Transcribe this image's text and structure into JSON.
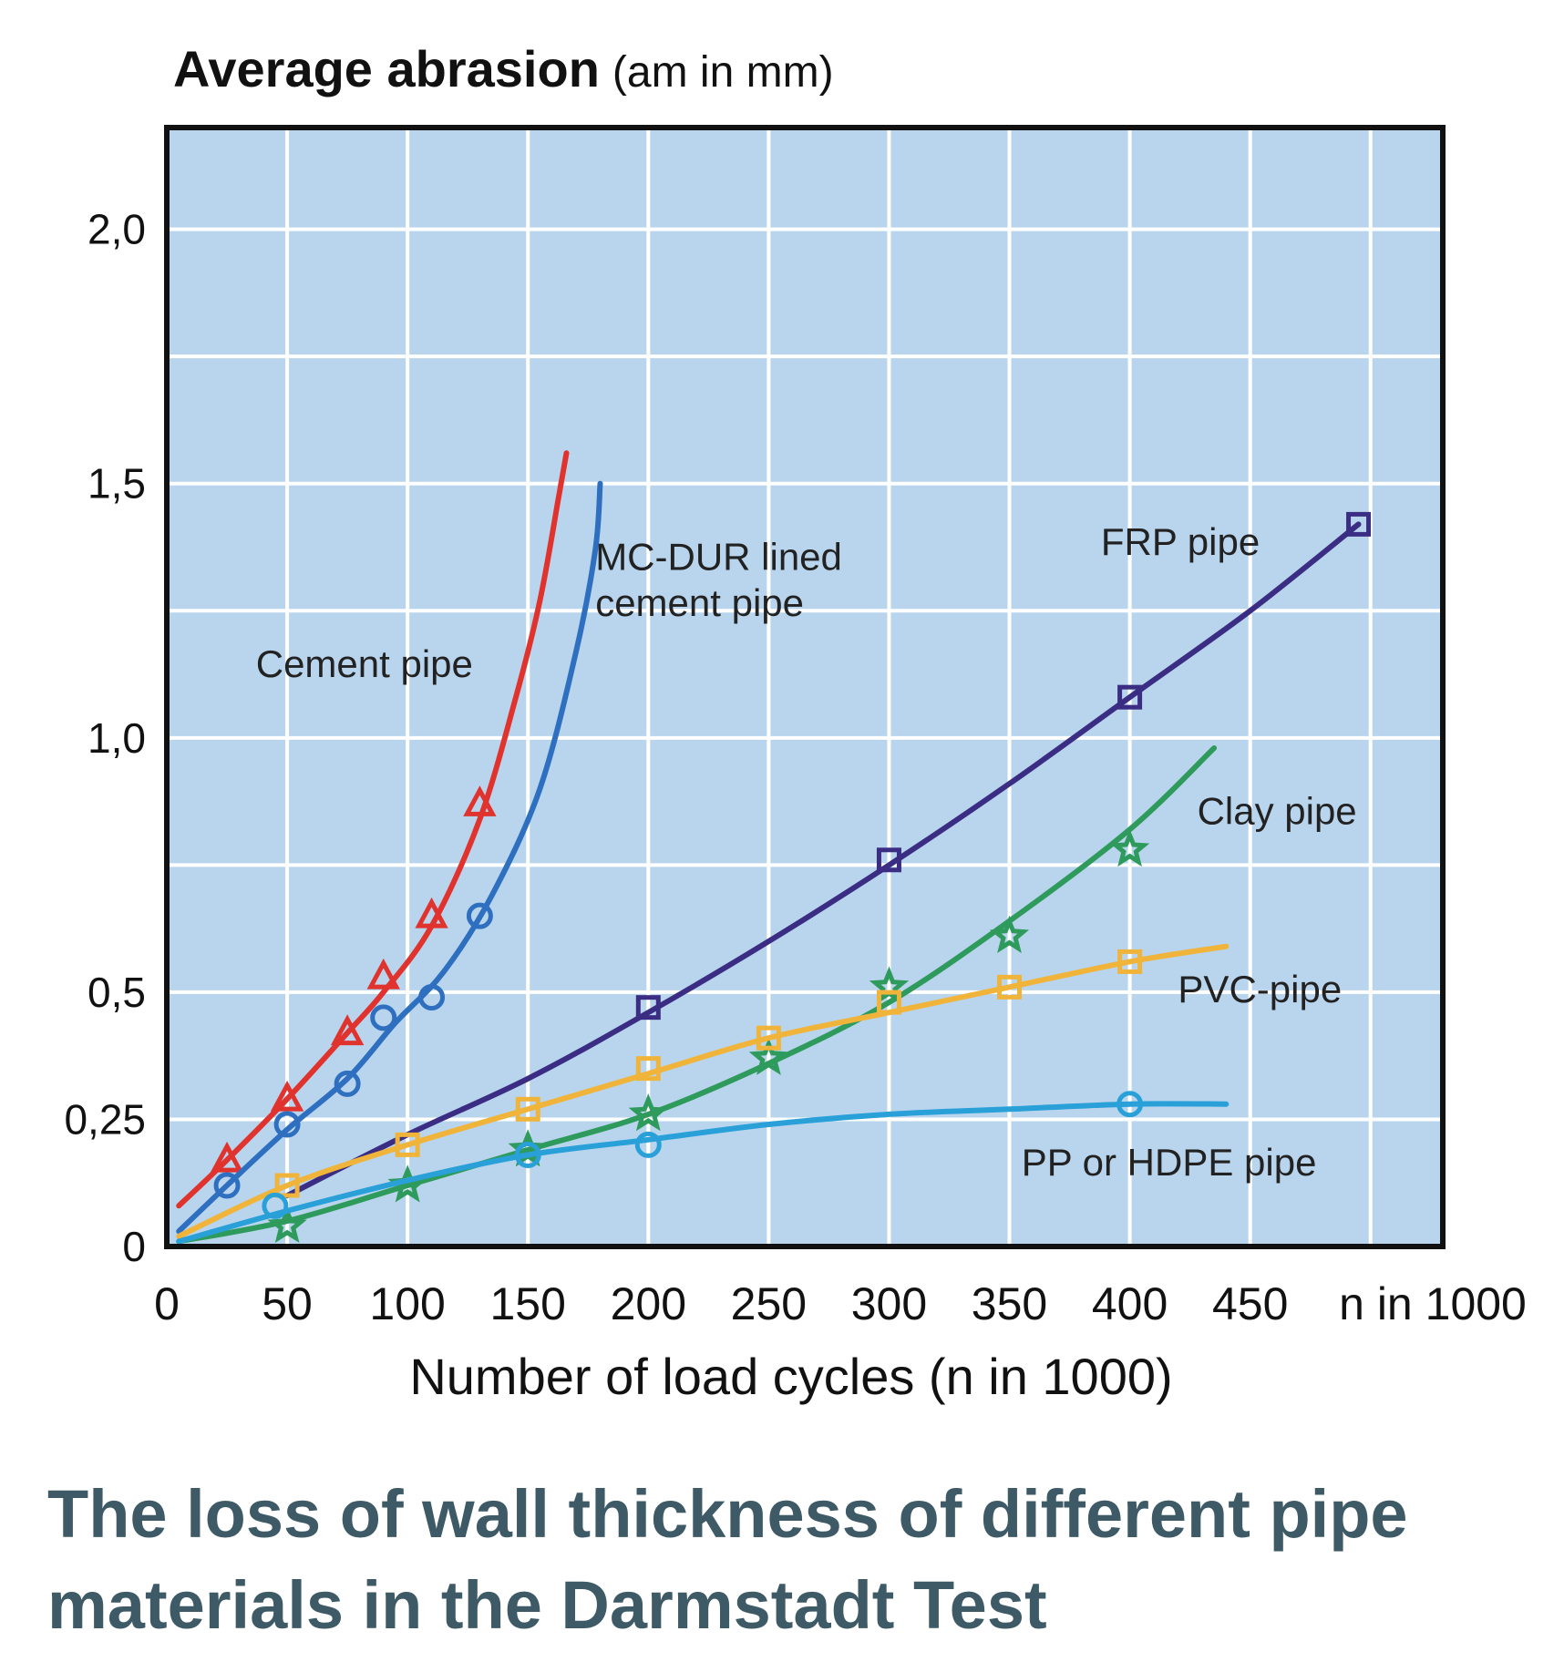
{
  "chart_data": {
    "type": "line",
    "ylabel_main": "Average abrasion",
    "ylabel_unit": "(am in mm)",
    "xlabel": "Number of load cycles (n in 1000)",
    "x_unit_tick": "n in 1000",
    "xlim": [
      0,
      530
    ],
    "ylim": [
      0,
      2.2
    ],
    "x_ticks": [
      0,
      50,
      100,
      150,
      200,
      250,
      300,
      350,
      400,
      450
    ],
    "x_tick_labels": [
      "0",
      "50",
      "100",
      "150",
      "200",
      "250",
      "300",
      "350",
      "400",
      "450"
    ],
    "y_ticks": [
      0,
      0.25,
      0.5,
      1.0,
      1.5,
      2.0
    ],
    "y_tick_labels": [
      "0",
      "0,25",
      "0,5",
      "1,0",
      "1,5",
      "2,0"
    ],
    "grid": true,
    "background_color": "#b9d5ee",
    "series": [
      {
        "name": "Cement pipe",
        "color": "#e0332e",
        "marker": "triangle",
        "line": [
          [
            5,
            0.08
          ],
          [
            25,
            0.17
          ],
          [
            50,
            0.29
          ],
          [
            75,
            0.42
          ],
          [
            90,
            0.5
          ],
          [
            110,
            0.63
          ],
          [
            130,
            0.84
          ],
          [
            145,
            1.08
          ],
          [
            155,
            1.27
          ],
          [
            163,
            1.48
          ],
          [
            166,
            1.56
          ]
        ],
        "points": [
          [
            25,
            0.17
          ],
          [
            50,
            0.29
          ],
          [
            75,
            0.42
          ],
          [
            90,
            0.53
          ],
          [
            110,
            0.65
          ],
          [
            130,
            0.87
          ]
        ]
      },
      {
        "name": "MC-DUR lined cement pipe",
        "color": "#2f6fc0",
        "marker": "circle",
        "line": [
          [
            5,
            0.03
          ],
          [
            25,
            0.12
          ],
          [
            50,
            0.23
          ],
          [
            75,
            0.33
          ],
          [
            95,
            0.44
          ],
          [
            115,
            0.54
          ],
          [
            135,
            0.69
          ],
          [
            155,
            0.9
          ],
          [
            170,
            1.17
          ],
          [
            178,
            1.37
          ],
          [
            180,
            1.5
          ]
        ],
        "points": [
          [
            25,
            0.12
          ],
          [
            50,
            0.24
          ],
          [
            75,
            0.32
          ],
          [
            90,
            0.45
          ],
          [
            110,
            0.49
          ],
          [
            130,
            0.65
          ]
        ]
      },
      {
        "name": "FRP pipe",
        "color": "#3a2d83",
        "marker": "square",
        "line": [
          [
            50,
            0.1
          ],
          [
            100,
            0.22
          ],
          [
            150,
            0.33
          ],
          [
            200,
            0.46
          ],
          [
            250,
            0.6
          ],
          [
            300,
            0.75
          ],
          [
            350,
            0.91
          ],
          [
            400,
            1.08
          ],
          [
            450,
            1.25
          ],
          [
            495,
            1.42
          ]
        ],
        "points": [
          [
            200,
            0.47
          ],
          [
            300,
            0.76
          ],
          [
            400,
            1.08
          ],
          [
            495,
            1.42
          ]
        ]
      },
      {
        "name": "Clay pipe",
        "color": "#2e9b5c",
        "marker": "star",
        "line": [
          [
            5,
            0.01
          ],
          [
            50,
            0.05
          ],
          [
            100,
            0.12
          ],
          [
            150,
            0.19
          ],
          [
            200,
            0.26
          ],
          [
            250,
            0.36
          ],
          [
            300,
            0.48
          ],
          [
            350,
            0.64
          ],
          [
            400,
            0.82
          ],
          [
            435,
            0.98
          ]
        ],
        "points": [
          [
            50,
            0.04
          ],
          [
            100,
            0.12
          ],
          [
            150,
            0.19
          ],
          [
            200,
            0.26
          ],
          [
            250,
            0.37
          ],
          [
            300,
            0.51
          ],
          [
            350,
            0.61
          ],
          [
            400,
            0.78
          ]
        ]
      },
      {
        "name": "PVC-pipe",
        "color": "#f0b43a",
        "marker": "square",
        "line": [
          [
            5,
            0.02
          ],
          [
            50,
            0.12
          ],
          [
            100,
            0.2
          ],
          [
            150,
            0.27
          ],
          [
            200,
            0.34
          ],
          [
            250,
            0.41
          ],
          [
            300,
            0.46
          ],
          [
            350,
            0.51
          ],
          [
            400,
            0.56
          ],
          [
            440,
            0.59
          ]
        ],
        "points": [
          [
            50,
            0.12
          ],
          [
            100,
            0.2
          ],
          [
            150,
            0.27
          ],
          [
            200,
            0.35
          ],
          [
            250,
            0.41
          ],
          [
            300,
            0.48
          ],
          [
            350,
            0.51
          ],
          [
            400,
            0.56
          ]
        ]
      },
      {
        "name": "PP or HDPE pipe",
        "color": "#2aa0d8",
        "marker": "circle",
        "line": [
          [
            5,
            0.01
          ],
          [
            50,
            0.07
          ],
          [
            100,
            0.13
          ],
          [
            150,
            0.18
          ],
          [
            200,
            0.21
          ],
          [
            250,
            0.24
          ],
          [
            300,
            0.26
          ],
          [
            350,
            0.27
          ],
          [
            400,
            0.28
          ],
          [
            440,
            0.28
          ]
        ],
        "points": [
          [
            45,
            0.08
          ],
          [
            150,
            0.18
          ],
          [
            200,
            0.2
          ],
          [
            400,
            0.28
          ]
        ]
      }
    ],
    "series_labels": [
      {
        "series": 0,
        "text": "Cement pipe",
        "at": [
          37,
          1.12
        ]
      },
      {
        "series": 1,
        "text": "MC-DUR lined",
        "at": [
          178,
          1.33
        ]
      },
      {
        "series": 1,
        "text": "cement pipe",
        "at": [
          178,
          1.24
        ]
      },
      {
        "series": 2,
        "text": "FRP pipe",
        "at": [
          388,
          1.36
        ]
      },
      {
        "series": 3,
        "text": "Clay pipe",
        "at": [
          428,
          0.83
        ]
      },
      {
        "series": 4,
        "text": "PVC-pipe",
        "at": [
          420,
          0.48
        ]
      },
      {
        "series": 5,
        "text": "PP or HDPE pipe",
        "at": [
          355,
          0.14
        ]
      }
    ]
  },
  "caption": {
    "line1": "The loss of wall thickness of different pipe",
    "line2": "materials in the Darmstadt Test"
  }
}
